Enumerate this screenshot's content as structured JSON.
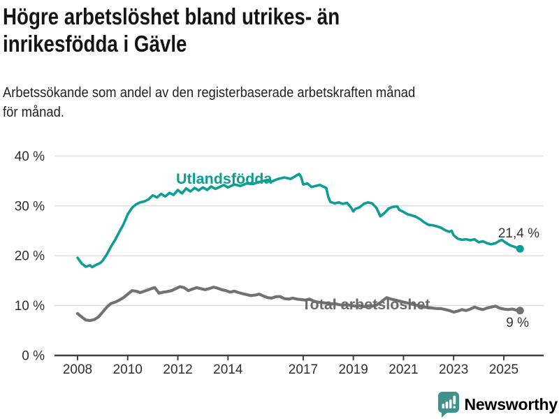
{
  "header": {
    "title_lines": [
      "Högre arbetslöshet bland utrikes- än",
      "inrikesfödda i Gävle"
    ],
    "subtitle_lines": [
      "Arbetssökande som andel av den registerbaserade arbetskraften månad",
      "för månad."
    ]
  },
  "colors": {
    "accent_teal": "#0a9e94",
    "line_gray": "#727272",
    "gray_label": "#6b6b6b",
    "grid": "#dcdcdc",
    "axis": "#3f3f3f",
    "tick_text": "#2e2e2e",
    "value_text": "#333333",
    "logo_teal": "#3e928b"
  },
  "footer": {
    "brand": "Newsworthy"
  },
  "chart_data": {
    "type": "line",
    "title": "Högre arbetslöshet bland utrikes- än inrikesfödda i Gävle",
    "subtitle": "Arbetssökande som andel av den registerbaserade arbetskraften månad för månad.",
    "xlabel": "",
    "ylabel": "",
    "grid": "horizontal",
    "legend": "inline-labels",
    "x_axis": {
      "range": [
        2007.1,
        2026.6
      ],
      "ticks": [
        2008,
        2010,
        2012,
        2014,
        2017,
        2019,
        2021,
        2023,
        2025
      ],
      "tick_labels": [
        "2008",
        "2010",
        "2012",
        "2014",
        "2017",
        "2019",
        "2021",
        "2023",
        "2025"
      ]
    },
    "y_axis": {
      "range": [
        0,
        41
      ],
      "ticks": [
        0,
        10,
        20,
        30,
        40
      ],
      "tick_labels": [
        "0 %",
        "10 %",
        "20 %",
        "30 %",
        "40 %"
      ]
    },
    "series": [
      {
        "name": "Utlandsfödda",
        "color": "#0a9e94",
        "end_value": 21.4,
        "end_label": "21,4 %",
        "points": [
          [
            2008,
            19.6
          ],
          [
            2008.17,
            18.4
          ],
          [
            2008.33,
            17.8
          ],
          [
            2008.5,
            18.1
          ],
          [
            2008.58,
            17.7
          ],
          [
            2008.75,
            18.2
          ],
          [
            2008.92,
            18.6
          ],
          [
            2009,
            19
          ],
          [
            2009.17,
            20.3
          ],
          [
            2009.33,
            21.8
          ],
          [
            2009.5,
            23.2
          ],
          [
            2009.67,
            24.8
          ],
          [
            2009.83,
            26.3
          ],
          [
            2010,
            28.3
          ],
          [
            2010.17,
            29.6
          ],
          [
            2010.33,
            30.3
          ],
          [
            2010.5,
            30.7
          ],
          [
            2010.67,
            30.9
          ],
          [
            2010.83,
            31.3
          ],
          [
            2011,
            32.1
          ],
          [
            2011.17,
            31.7
          ],
          [
            2011.33,
            32.4
          ],
          [
            2011.5,
            31.9
          ],
          [
            2011.67,
            32.6
          ],
          [
            2011.83,
            32.2
          ],
          [
            2012,
            33.2
          ],
          [
            2012.17,
            32.5
          ],
          [
            2012.33,
            33.5
          ],
          [
            2012.5,
            32.9
          ],
          [
            2012.67,
            33.6
          ],
          [
            2012.83,
            33.1
          ],
          [
            2013,
            33.7
          ],
          [
            2013.17,
            33.2
          ],
          [
            2013.33,
            33.9
          ],
          [
            2013.5,
            33.4
          ],
          [
            2013.67,
            33.8
          ],
          [
            2013.83,
            34.2
          ],
          [
            2014,
            33.7
          ],
          [
            2014.25,
            34.3
          ],
          [
            2014.5,
            34
          ],
          [
            2014.75,
            34.5
          ],
          [
            2015,
            34.4
          ],
          [
            2015.25,
            34.8
          ],
          [
            2015.5,
            35.1
          ],
          [
            2015.75,
            34.9
          ],
          [
            2016,
            35.4
          ],
          [
            2016.25,
            35.7
          ],
          [
            2016.5,
            35.4
          ],
          [
            2016.67,
            35.9
          ],
          [
            2016.83,
            36.4
          ],
          [
            2016.92,
            35.8
          ],
          [
            2017,
            34.3
          ],
          [
            2017.17,
            34.5
          ],
          [
            2017.33,
            33.8
          ],
          [
            2017.5,
            34
          ],
          [
            2017.67,
            34.2
          ],
          [
            2017.83,
            33.8
          ],
          [
            2017.92,
            33.6
          ],
          [
            2018,
            31.8
          ],
          [
            2018.08,
            30.8
          ],
          [
            2018.25,
            30.5
          ],
          [
            2018.42,
            30.7
          ],
          [
            2018.58,
            30.4
          ],
          [
            2018.75,
            30.6
          ],
          [
            2018.92,
            29.6
          ],
          [
            2019,
            28.9
          ],
          [
            2019.08,
            29.4
          ],
          [
            2019.25,
            29.7
          ],
          [
            2019.42,
            30.4
          ],
          [
            2019.58,
            30.7
          ],
          [
            2019.75,
            30.5
          ],
          [
            2019.92,
            29.6
          ],
          [
            2020.08,
            27.9
          ],
          [
            2020.25,
            28.6
          ],
          [
            2020.42,
            29.5
          ],
          [
            2020.58,
            29.8
          ],
          [
            2020.75,
            29.9
          ],
          [
            2020.83,
            29.2
          ],
          [
            2021,
            28.8
          ],
          [
            2021.17,
            28.3
          ],
          [
            2021.33,
            28.1
          ],
          [
            2021.5,
            27.8
          ],
          [
            2021.67,
            27.3
          ],
          [
            2021.83,
            26.7
          ],
          [
            2022,
            26.2
          ],
          [
            2022.17,
            26.1
          ],
          [
            2022.33,
            25.9
          ],
          [
            2022.5,
            25.6
          ],
          [
            2022.67,
            25.1
          ],
          [
            2022.83,
            24.8
          ],
          [
            2022.92,
            25
          ],
          [
            2023,
            24.1
          ],
          [
            2023.17,
            23.4
          ],
          [
            2023.33,
            23.2
          ],
          [
            2023.5,
            23.3
          ],
          [
            2023.67,
            23.1
          ],
          [
            2023.83,
            23.3
          ],
          [
            2024,
            22.7
          ],
          [
            2024.17,
            22.9
          ],
          [
            2024.33,
            22.5
          ],
          [
            2024.5,
            22.3
          ],
          [
            2024.67,
            22.5
          ],
          [
            2024.83,
            23
          ],
          [
            2024.92,
            23.2
          ],
          [
            2025.08,
            22.6
          ],
          [
            2025.25,
            22.1
          ],
          [
            2025.42,
            21.8
          ],
          [
            2025.58,
            21.5
          ],
          [
            2025.65,
            21.4
          ]
        ]
      },
      {
        "name": "Total arbetslöshet",
        "color": "#727272",
        "end_value": 9,
        "end_label": "9 %",
        "points": [
          [
            2008,
            8.4
          ],
          [
            2008.17,
            7.7
          ],
          [
            2008.33,
            7.1
          ],
          [
            2008.5,
            7
          ],
          [
            2008.67,
            7.2
          ],
          [
            2008.83,
            7.7
          ],
          [
            2009,
            8.7
          ],
          [
            2009.17,
            9.7
          ],
          [
            2009.33,
            10.4
          ],
          [
            2009.5,
            10.7
          ],
          [
            2009.67,
            11.1
          ],
          [
            2009.83,
            11.6
          ],
          [
            2010,
            12.3
          ],
          [
            2010.17,
            13
          ],
          [
            2010.33,
            12.9
          ],
          [
            2010.5,
            12.6
          ],
          [
            2010.67,
            12.9
          ],
          [
            2010.83,
            13.2
          ],
          [
            2011,
            13.5
          ],
          [
            2011.08,
            13.6
          ],
          [
            2011.25,
            12.5
          ],
          [
            2011.42,
            12.7
          ],
          [
            2011.58,
            12.8
          ],
          [
            2011.75,
            13
          ],
          [
            2011.92,
            13.4
          ],
          [
            2012.08,
            13.8
          ],
          [
            2012.25,
            13.6
          ],
          [
            2012.42,
            13
          ],
          [
            2012.58,
            13.3
          ],
          [
            2012.75,
            13.6
          ],
          [
            2012.92,
            13.4
          ],
          [
            2013.08,
            13.2
          ],
          [
            2013.25,
            13.4
          ],
          [
            2013.42,
            13.7
          ],
          [
            2013.58,
            13.5
          ],
          [
            2013.75,
            13.2
          ],
          [
            2013.92,
            13
          ],
          [
            2014.08,
            12.7
          ],
          [
            2014.25,
            12.9
          ],
          [
            2014.42,
            12.6
          ],
          [
            2014.58,
            12.4
          ],
          [
            2014.75,
            12.2
          ],
          [
            2014.92,
            12
          ],
          [
            2015.08,
            12.1
          ],
          [
            2015.25,
            12.3
          ],
          [
            2015.42,
            11.9
          ],
          [
            2015.58,
            11.6
          ],
          [
            2015.75,
            11.5
          ],
          [
            2015.92,
            11.8
          ],
          [
            2016.08,
            11.8
          ],
          [
            2016.25,
            11.4
          ],
          [
            2016.42,
            11.3
          ],
          [
            2016.58,
            11.5
          ],
          [
            2016.75,
            11.3
          ],
          [
            2016.92,
            11.2
          ],
          [
            2017.08,
            11.1
          ],
          [
            2017.25,
            11.3
          ],
          [
            2017.42,
            10.9
          ],
          [
            2017.58,
            10.7
          ],
          [
            2017.75,
            10.6
          ],
          [
            2017.92,
            10.5
          ],
          [
            2018.08,
            10.3
          ],
          [
            2018.25,
            10.4
          ],
          [
            2018.42,
            10.2
          ],
          [
            2018.58,
            10.1
          ],
          [
            2018.75,
            10.2
          ],
          [
            2018.92,
            10
          ],
          [
            2019.08,
            9.9
          ],
          [
            2019.25,
            10
          ],
          [
            2019.42,
            9.8
          ],
          [
            2019.58,
            9.9
          ],
          [
            2019.75,
            9.9
          ],
          [
            2019.92,
            10.1
          ],
          [
            2020.08,
            10.6
          ],
          [
            2020.25,
            11.3
          ],
          [
            2020.33,
            11.6
          ],
          [
            2020.5,
            11.3
          ],
          [
            2020.67,
            11.1
          ],
          [
            2020.83,
            10.9
          ],
          [
            2021,
            10.7
          ],
          [
            2021.17,
            10.5
          ],
          [
            2021.33,
            10.3
          ],
          [
            2021.5,
            10.1
          ],
          [
            2021.67,
            9.9
          ],
          [
            2021.83,
            9.7
          ],
          [
            2022,
            9.6
          ],
          [
            2022.17,
            9.5
          ],
          [
            2022.33,
            9.4
          ],
          [
            2022.5,
            9.4
          ],
          [
            2022.67,
            9.2
          ],
          [
            2022.83,
            9
          ],
          [
            2023,
            8.7
          ],
          [
            2023.17,
            8.9
          ],
          [
            2023.33,
            9.2
          ],
          [
            2023.5,
            9
          ],
          [
            2023.67,
            9.3
          ],
          [
            2023.83,
            9.7
          ],
          [
            2024,
            9.4
          ],
          [
            2024.17,
            9.2
          ],
          [
            2024.33,
            9.5
          ],
          [
            2024.5,
            9.7
          ],
          [
            2024.67,
            9.9
          ],
          [
            2024.83,
            9.5
          ],
          [
            2025,
            9.3
          ],
          [
            2025.17,
            9.2
          ],
          [
            2025.33,
            9.3
          ],
          [
            2025.5,
            9.1
          ],
          [
            2025.65,
            9
          ]
        ]
      }
    ]
  }
}
